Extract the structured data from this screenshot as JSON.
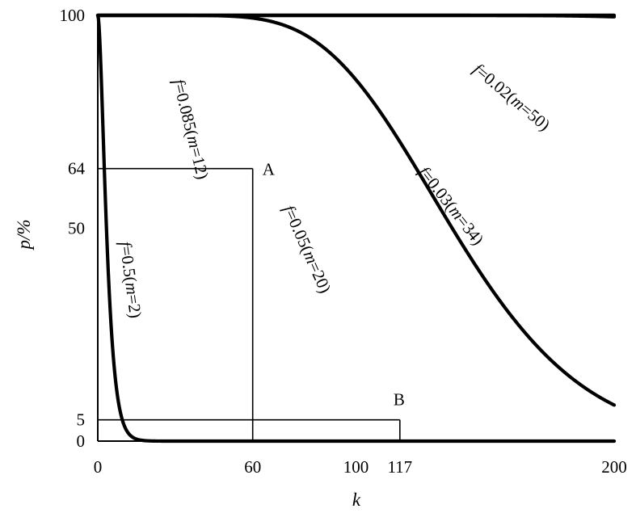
{
  "chart_data": {
    "type": "line",
    "xlabel": "k",
    "ylabel": "p/%",
    "xlim": [
      0,
      200
    ],
    "ylim": [
      0,
      100
    ],
    "x_ticks": [
      0,
      60,
      100,
      117,
      200
    ],
    "y_ticks": [
      0,
      5,
      50,
      64,
      100
    ],
    "series": [
      {
        "label_f": "f",
        "label_rest": "=0.5(",
        "label_m": "m",
        "label_end": "=2)",
        "f": 0.5,
        "m": 2
      },
      {
        "label_f": "f",
        "label_rest": "=0.085(",
        "label_m": "m",
        "label_end": "=12)",
        "f": 0.085,
        "m": 12
      },
      {
        "label_f": "f",
        "label_rest": "=0.05(",
        "label_m": "m",
        "label_end": "=20)",
        "f": 0.05,
        "m": 20
      },
      {
        "label_f": "f",
        "label_rest": "=0.03(",
        "label_m": "m",
        "label_end": "=34)",
        "f": 0.03,
        "m": 34
      },
      {
        "label_f": "f",
        "label_rest": "=0.02(",
        "label_m": "m",
        "label_end": "=50)",
        "f": 0.02,
        "m": 50
      }
    ],
    "annotations": [
      {
        "label": "A",
        "x": 60,
        "y": 64
      },
      {
        "label": "B",
        "x": 117,
        "y": 5
      }
    ]
  }
}
